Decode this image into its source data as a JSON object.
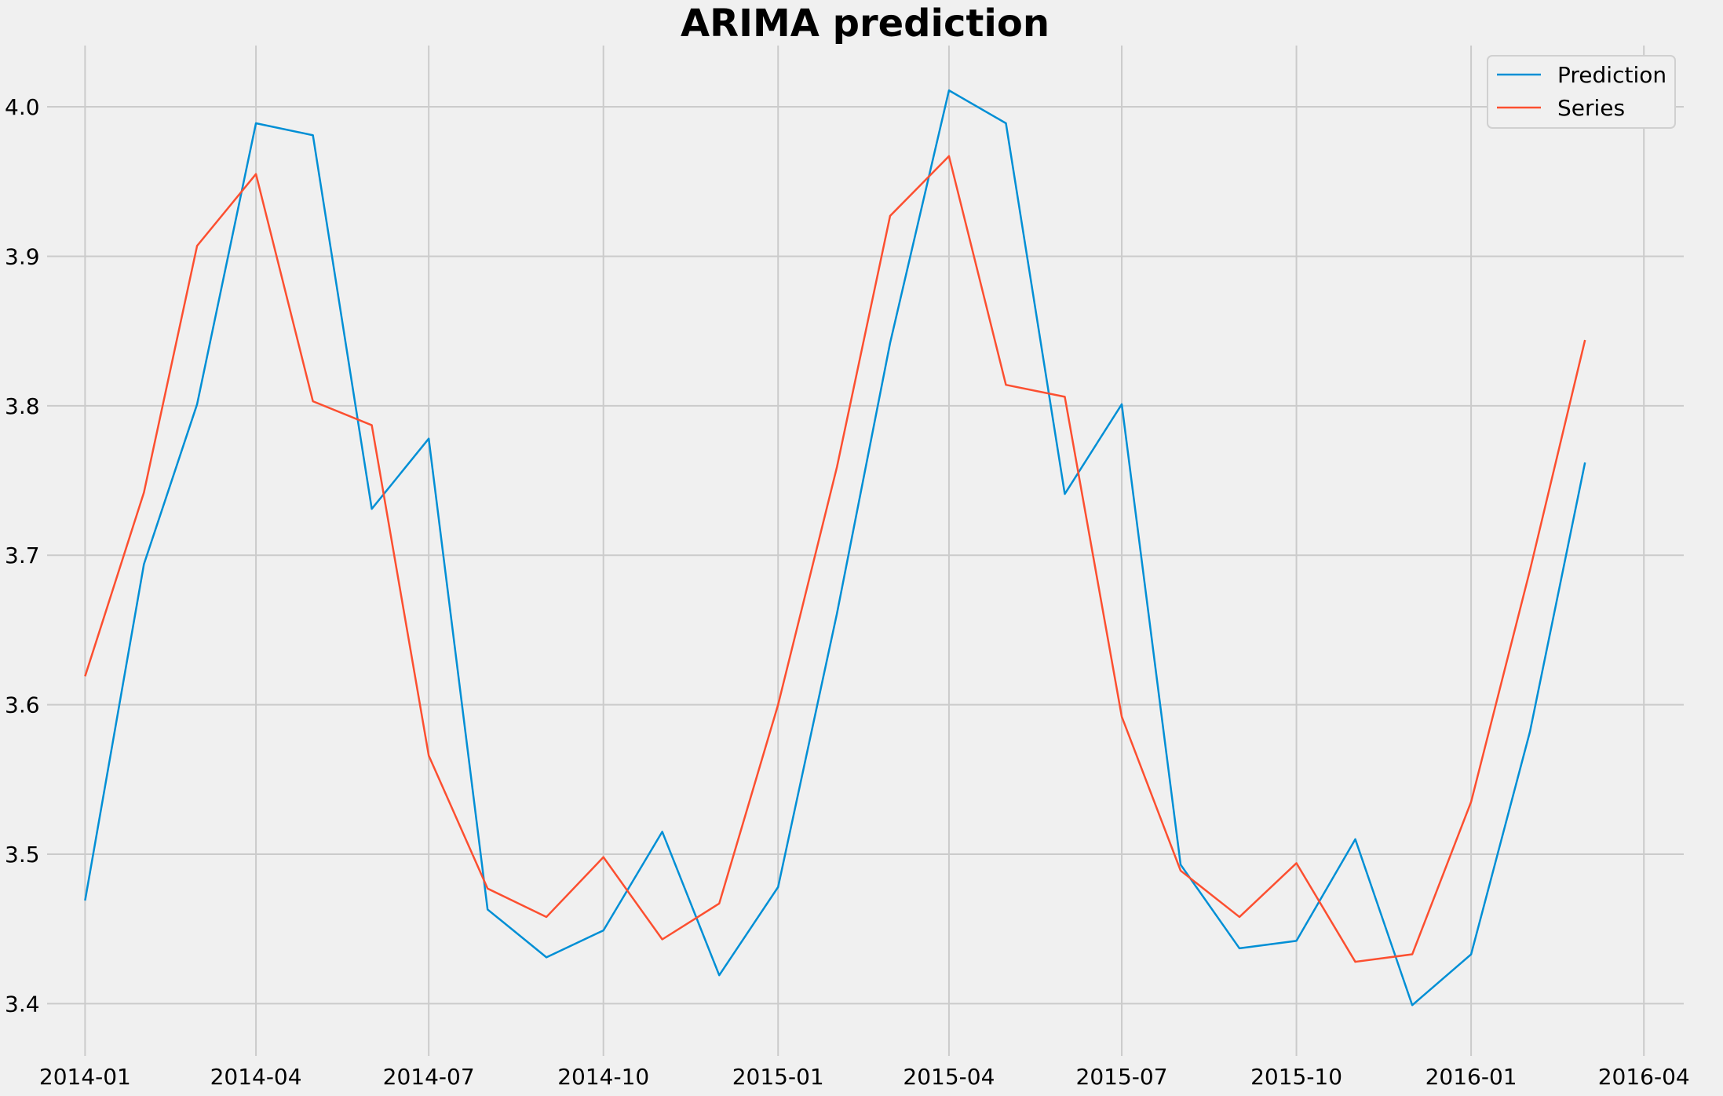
{
  "chart_data": {
    "type": "line",
    "title": "ARIMA prediction",
    "xlabel": "",
    "ylabel": "",
    "x": [
      "2014-01",
      "2014-02",
      "2014-03",
      "2014-04",
      "2014-05",
      "2014-06",
      "2014-07",
      "2014-08",
      "2014-09",
      "2014-10",
      "2014-11",
      "2014-12",
      "2015-01",
      "2015-02",
      "2015-03",
      "2015-04",
      "2015-05",
      "2015-06",
      "2015-07",
      "2015-08",
      "2015-09",
      "2015-10",
      "2015-11",
      "2015-12",
      "2016-01",
      "2016-02",
      "2016-03"
    ],
    "x_ticks": [
      "2014-01",
      "2014-04",
      "2014-07",
      "2014-10",
      "2015-01",
      "2015-04",
      "2015-07",
      "2015-10",
      "2016-01",
      "2016-04"
    ],
    "y_ticks": [
      "3.4",
      "3.5",
      "3.6",
      "3.7",
      "3.8",
      "3.9",
      "4.0"
    ],
    "ylim": [
      3.365,
      4.041
    ],
    "xlim": [
      "2013-12-12",
      "2016-04-22"
    ],
    "grid": true,
    "legend_position": "top-right",
    "series": [
      {
        "name": "Prediction",
        "color": "#008fd5",
        "values": [
          3.469,
          3.694,
          3.801,
          3.989,
          3.981,
          3.731,
          3.778,
          3.463,
          3.431,
          3.449,
          3.515,
          3.419,
          3.478,
          3.661,
          3.842,
          4.011,
          3.989,
          3.741,
          3.801,
          3.493,
          3.437,
          3.442,
          3.51,
          3.399,
          3.433,
          3.582,
          3.762
        ]
      },
      {
        "name": "Series",
        "color": "#fc4f30",
        "values": [
          3.619,
          3.742,
          3.907,
          3.955,
          3.803,
          3.787,
          3.566,
          3.477,
          3.458,
          3.498,
          3.443,
          3.467,
          3.6,
          3.759,
          3.927,
          3.967,
          3.814,
          3.806,
          3.592,
          3.489,
          3.458,
          3.494,
          3.428,
          3.433,
          3.535,
          3.69,
          3.844
        ]
      }
    ]
  }
}
